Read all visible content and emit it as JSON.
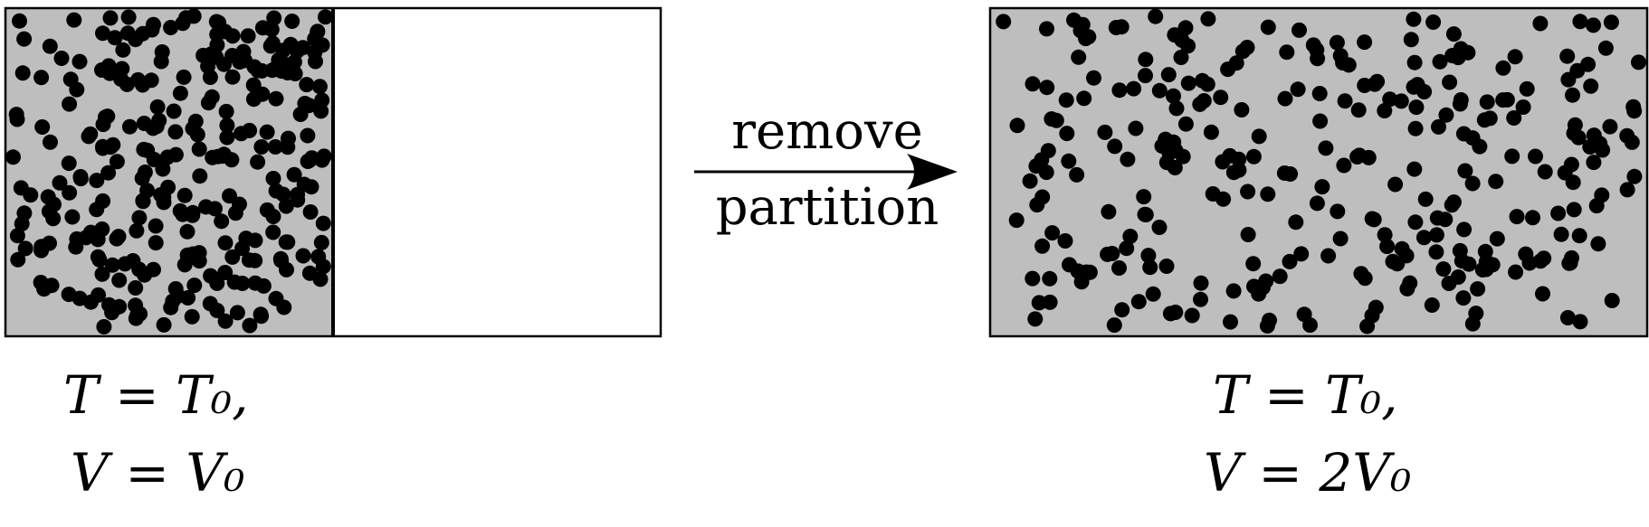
{
  "diagram": {
    "process_label_line1": "remove",
    "process_label_line2": "partition",
    "initial_state": {
      "temperature_label": "T = T₀,",
      "volume_label": "V = V₀",
      "gas_color": "#bebebe",
      "empty_color": "#ffffff"
    },
    "final_state": {
      "temperature_label": "T = T₀,",
      "volume_label": "V = 2V₀",
      "gas_color": "#bebebe"
    },
    "particle_color": "#000000",
    "outline_color": "#000000"
  }
}
